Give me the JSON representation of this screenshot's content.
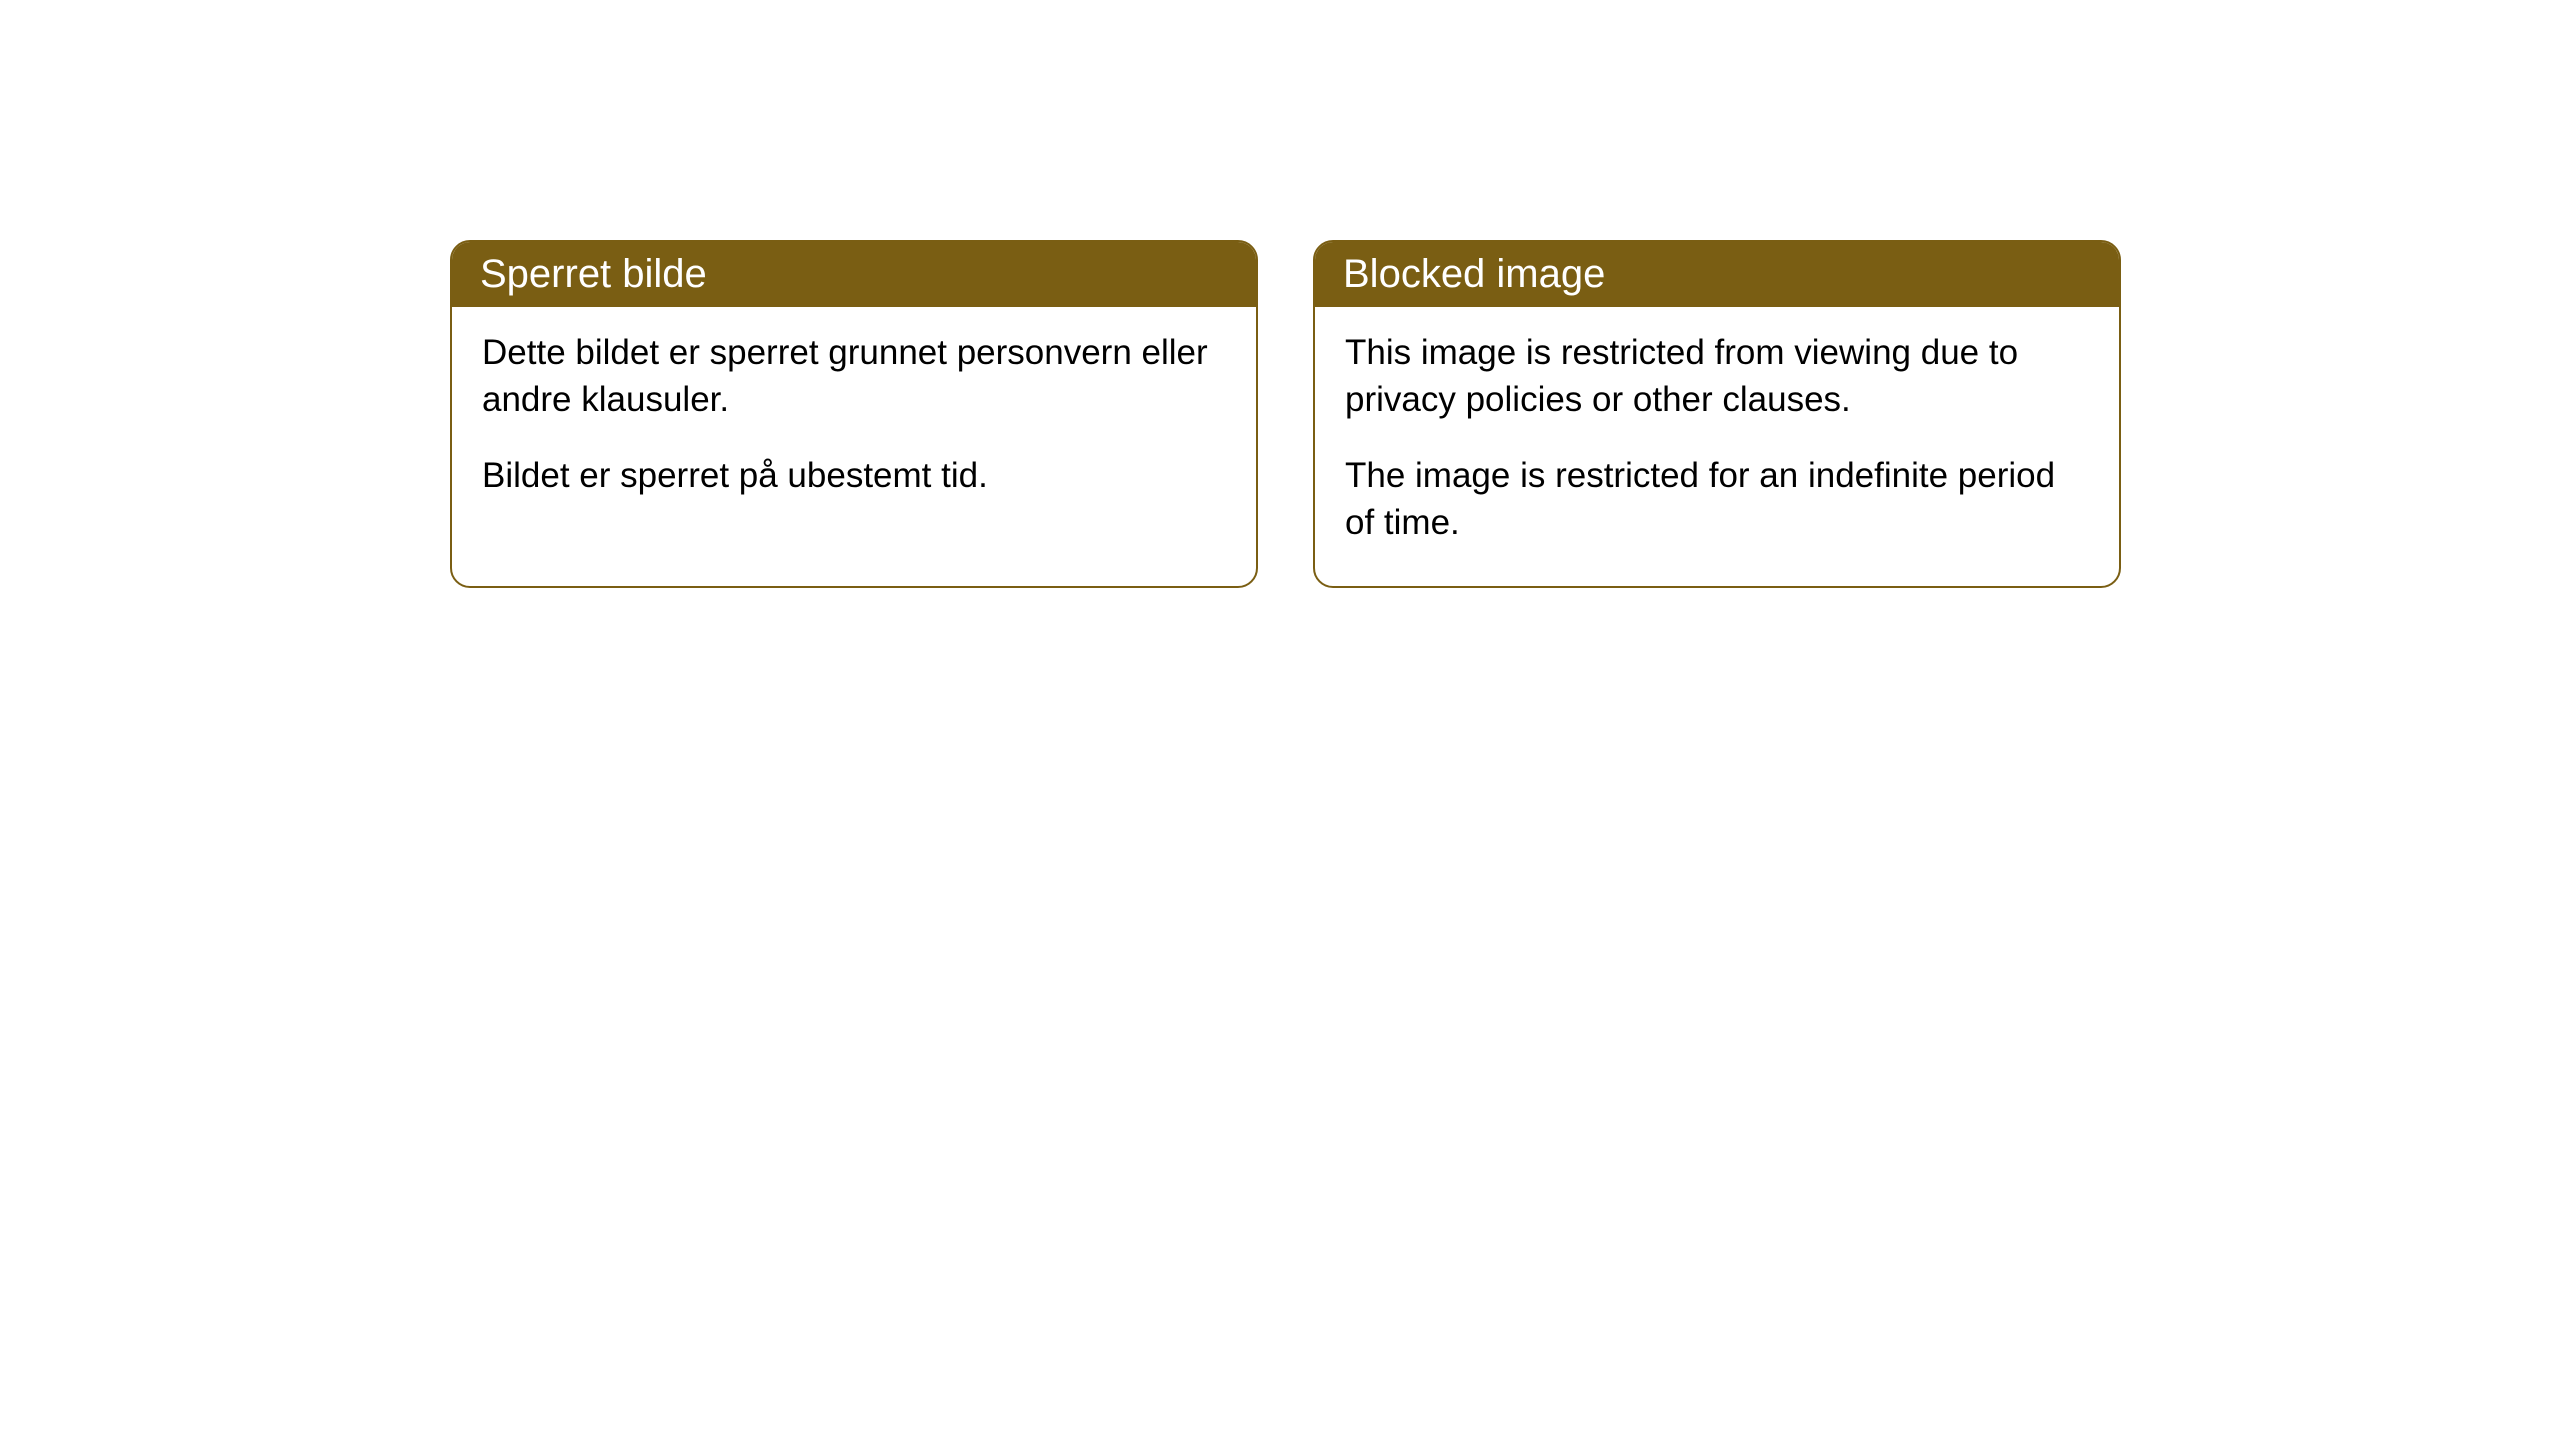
{
  "cards": [
    {
      "title": "Sperret bilde",
      "paragraph1": "Dette bildet er sperret grunnet personvern eller andre klausuler.",
      "paragraph2": "Bildet er sperret på ubestemt tid."
    },
    {
      "title": "Blocked image",
      "paragraph1": "This image is restricted from viewing due to privacy policies or other clauses.",
      "paragraph2": "The image is restricted for an indefinite period of time."
    }
  ],
  "styling": {
    "header_bg_color": "#7a5e13",
    "header_text_color": "#ffffff",
    "border_color": "#7a5e13",
    "body_bg_color": "#ffffff",
    "body_text_color": "#000000",
    "border_radius": "20px",
    "title_fontsize": 40,
    "body_fontsize": 35
  }
}
